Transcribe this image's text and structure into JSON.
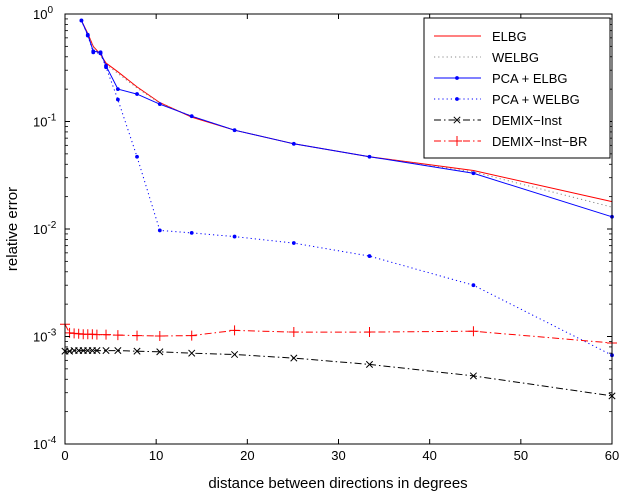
{
  "chart_data": {
    "type": "line",
    "title": "",
    "xlabel": "distance between directions in degrees",
    "ylabel": "relative error",
    "xlim": [
      0,
      60
    ],
    "ylim": [
      0.0001,
      1
    ],
    "yscale": "log",
    "grid": false,
    "legend_position": "top-right",
    "x_ticks": [
      0,
      10,
      20,
      30,
      40,
      50,
      60
    ],
    "y_ticks": [
      {
        "value": 0.0001,
        "base": "10",
        "exp": "-4"
      },
      {
        "value": 0.001,
        "base": "10",
        "exp": "-3"
      },
      {
        "value": 0.01,
        "base": "10",
        "exp": "-2"
      },
      {
        "value": 0.1,
        "base": "10",
        "exp": "-1"
      },
      {
        "value": 1,
        "base": "10",
        "exp": "0"
      }
    ],
    "series": [
      {
        "name": "ELBG",
        "color": "#ff0000",
        "line_style": "solid",
        "marker": "none",
        "x": [
          1.8,
          2.5,
          3.1,
          3.9,
          4.5,
          5.8,
          7.9,
          10.4,
          13.9,
          18.6,
          25.1,
          33.4,
          44.8,
          60
        ],
        "y": [
          0.87,
          0.66,
          0.5,
          0.42,
          0.35,
          0.29,
          0.21,
          0.15,
          0.11,
          0.083,
          0.062,
          0.047,
          0.035,
          0.018
        ]
      },
      {
        "name": "WELBG",
        "color": "#888888",
        "line_style": "dotted",
        "marker": "none",
        "x": [
          1.8,
          2.5,
          3.1,
          3.9,
          4.5,
          5.8,
          7.9,
          10.4,
          13.9,
          18.6,
          25.1,
          33.4,
          44.8,
          60
        ],
        "y": [
          0.87,
          0.65,
          0.49,
          0.41,
          0.34,
          0.28,
          0.205,
          0.148,
          0.112,
          0.083,
          0.062,
          0.047,
          0.034,
          0.016
        ]
      },
      {
        "name": "PCA + ELBG",
        "color": "#0000ff",
        "line_style": "solid",
        "marker": "dot",
        "x": [
          1.8,
          2.5,
          3.1,
          3.9,
          4.5,
          5.8,
          7.9,
          10.4,
          13.9,
          18.6,
          25.1,
          33.4,
          44.8,
          60
        ],
        "y": [
          0.87,
          0.64,
          0.45,
          0.44,
          0.33,
          0.2,
          0.18,
          0.145,
          0.112,
          0.083,
          0.062,
          0.047,
          0.033,
          0.013
        ]
      },
      {
        "name": "PCA + WELBG",
        "color": "#0000ff",
        "line_style": "dotted",
        "marker": "dot",
        "x": [
          1.8,
          2.5,
          3.1,
          3.9,
          4.5,
          5.8,
          7.9,
          10.4,
          13.9,
          18.6,
          25.1,
          33.4,
          44.8,
          60
        ],
        "y": [
          0.87,
          0.63,
          0.44,
          0.43,
          0.32,
          0.16,
          0.047,
          0.0097,
          0.0092,
          0.0085,
          0.0074,
          0.0056,
          0.003,
          0.00067
        ]
      },
      {
        "name": "DEMIX−Inst",
        "color": "#000000",
        "line_style": "dashdot",
        "marker": "x",
        "x": [
          0,
          0.5,
          1.0,
          1.5,
          2.0,
          2.5,
          3.0,
          3.5,
          4.5,
          5.8,
          7.9,
          10.4,
          13.9,
          18.6,
          25.1,
          33.4,
          44.8,
          60
        ],
        "y": [
          0.00073,
          0.00073,
          0.00074,
          0.00074,
          0.00074,
          0.00074,
          0.00074,
          0.00074,
          0.00074,
          0.00074,
          0.00073,
          0.00072,
          0.0007,
          0.00068,
          0.00063,
          0.00055,
          0.00043,
          0.00028
        ]
      },
      {
        "name": "DEMIX−Inst−BR",
        "color": "#ff0000",
        "line_style": "dashdot",
        "marker": "plus",
        "x": [
          0,
          0.5,
          1.0,
          1.5,
          2.0,
          2.5,
          3.0,
          3.5,
          4.5,
          5.8,
          7.9,
          10.4,
          13.9,
          18.6,
          25.1,
          33.4,
          44.8,
          60
        ],
        "y": [
          0.0013,
          0.00108,
          0.00107,
          0.00106,
          0.00105,
          0.00105,
          0.00105,
          0.00104,
          0.00104,
          0.00103,
          0.00102,
          0.00101,
          0.00102,
          0.00114,
          0.0011,
          0.0011,
          0.00112,
          0.00087
        ]
      }
    ]
  }
}
